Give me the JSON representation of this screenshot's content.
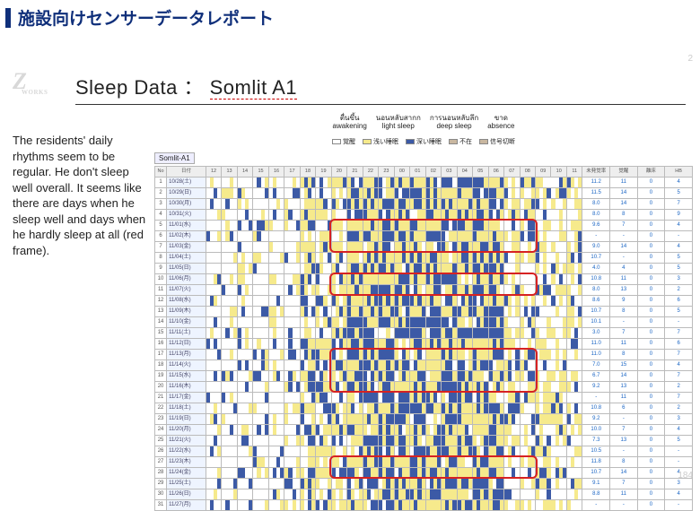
{
  "colors": {
    "accent": "#0f2f7a",
    "title": "#0f2f7a",
    "light_sleep": "#f6ea8c",
    "deep_sleep": "#3c5aa6",
    "awake": "#ffffff",
    "absence": "#c9b7a0",
    "border": "#bbbbbb",
    "redframe": "#d62222",
    "date_bg": "#eef4ff",
    "stat_text": "#1a65c4"
  },
  "header": {
    "title": "施設向けセンサーデータレポート"
  },
  "page_number_top": "2",
  "page_number_bottom": "184",
  "logo": {
    "main": "Z",
    "sub": "WORKS"
  },
  "chart_title": {
    "prefix": "Sleep Data ： ",
    "subject": "Somlit A1"
  },
  "sidebar_text": "The residents' daily rhythms seem to be regular. He don't sleep well overall. It seems like there are days when he sleep well and days when he hardly sleep at all (red frame).",
  "legend_top": [
    {
      "thai": "ตื่นขึ้น",
      "en": "awakening"
    },
    {
      "thai": "นอนหลับสากก",
      "en": "light sleep"
    },
    {
      "thai": "การนอนหลับลึก",
      "en": "deep sleep"
    },
    {
      "thai": "ขาด",
      "en": "absence"
    }
  ],
  "legend_swatch": [
    {
      "label": "覚醒",
      "color_key": "awake"
    },
    {
      "label": "浅い睡眠",
      "color_key": "light_sleep"
    },
    {
      "label": "深い睡眠",
      "color_key": "deep_sleep"
    },
    {
      "label": "不在",
      "color_key": "absence"
    },
    {
      "label": "信号切断",
      "color_key": "absence"
    }
  ],
  "subject_label": "Somlit-A1",
  "hours": [
    "12",
    "13",
    "14",
    "15",
    "16",
    "17",
    "18",
    "19",
    "20",
    "21",
    "22",
    "23",
    "00",
    "01",
    "02",
    "03",
    "04",
    "05",
    "06",
    "07",
    "08",
    "09",
    "10",
    "11"
  ],
  "stat_headers": [
    "未発覚率",
    "覚醒",
    "離床",
    "HB"
  ],
  "rows": [
    {
      "n": 1,
      "date": "10/28(土)",
      "sleep": "11.2",
      "wake": "11",
      "away": "0",
      "hb": "4"
    },
    {
      "n": 2,
      "date": "10/29(日)",
      "sleep": "11.5",
      "wake": "14",
      "away": "0",
      "hb": "5"
    },
    {
      "n": 3,
      "date": "10/30(月)",
      "sleep": "8.0",
      "wake": "14",
      "away": "0",
      "hb": "7"
    },
    {
      "n": 4,
      "date": "10/31(火)",
      "sleep": "8.0",
      "wake": "8",
      "away": "0",
      "hb": "9"
    },
    {
      "n": 5,
      "date": "11/01(水)",
      "sleep": "9.6",
      "wake": "7",
      "away": "0",
      "hb": "4"
    },
    {
      "n": 6,
      "date": "11/02(木)",
      "sleep": "-",
      "wake": "-",
      "away": "0",
      "hb": "-"
    },
    {
      "n": 7,
      "date": "11/03(金)",
      "sleep": "9.0",
      "wake": "14",
      "away": "0",
      "hb": "4"
    },
    {
      "n": 8,
      "date": "11/04(土)",
      "sleep": "10.7",
      "wake": "-",
      "away": "0",
      "hb": "5"
    },
    {
      "n": 9,
      "date": "11/05(日)",
      "sleep": "4.0",
      "wake": "4",
      "away": "0",
      "hb": "5"
    },
    {
      "n": 10,
      "date": "11/06(月)",
      "sleep": "10.8",
      "wake": "11",
      "away": "0",
      "hb": "3"
    },
    {
      "n": 11,
      "date": "11/07(火)",
      "sleep": "8.0",
      "wake": "13",
      "away": "0",
      "hb": "2"
    },
    {
      "n": 12,
      "date": "11/08(水)",
      "sleep": "8.6",
      "wake": "9",
      "away": "0",
      "hb": "6"
    },
    {
      "n": 13,
      "date": "11/09(木)",
      "sleep": "10.7",
      "wake": "8",
      "away": "0",
      "hb": "5"
    },
    {
      "n": 14,
      "date": "11/10(金)",
      "sleep": "10.1",
      "wake": "-",
      "away": "0",
      "hb": "-"
    },
    {
      "n": 15,
      "date": "11/11(土)",
      "sleep": "3.0",
      "wake": "7",
      "away": "0",
      "hb": "7"
    },
    {
      "n": 16,
      "date": "11/12(日)",
      "sleep": "11.0",
      "wake": "11",
      "away": "0",
      "hb": "6"
    },
    {
      "n": 17,
      "date": "11/13(月)",
      "sleep": "11.0",
      "wake": "8",
      "away": "0",
      "hb": "7"
    },
    {
      "n": 18,
      "date": "11/14(火)",
      "sleep": "7.0",
      "wake": "15",
      "away": "0",
      "hb": "4"
    },
    {
      "n": 19,
      "date": "11/15(水)",
      "sleep": "6.7",
      "wake": "14",
      "away": "0",
      "hb": "7"
    },
    {
      "n": 20,
      "date": "11/16(木)",
      "sleep": "9.2",
      "wake": "13",
      "away": "0",
      "hb": "2"
    },
    {
      "n": 21,
      "date": "11/17(金)",
      "sleep": "-",
      "wake": "11",
      "away": "0",
      "hb": "7"
    },
    {
      "n": 22,
      "date": "11/18(土)",
      "sleep": "10.8",
      "wake": "6",
      "away": "0",
      "hb": "2"
    },
    {
      "n": 23,
      "date": "11/19(日)",
      "sleep": "9.2",
      "wake": "-",
      "away": "0",
      "hb": "3"
    },
    {
      "n": 24,
      "date": "11/20(月)",
      "sleep": "10.0",
      "wake": "7",
      "away": "0",
      "hb": "4"
    },
    {
      "n": 25,
      "date": "11/21(火)",
      "sleep": "7.3",
      "wake": "13",
      "away": "0",
      "hb": "5"
    },
    {
      "n": 26,
      "date": "11/22(水)",
      "sleep": "10.5",
      "wake": "-",
      "away": "0",
      "hb": "-"
    },
    {
      "n": 27,
      "date": "11/23(木)",
      "sleep": "11.8",
      "wake": "8",
      "away": "0",
      "hb": "-"
    },
    {
      "n": 28,
      "date": "11/24(金)",
      "sleep": "10.7",
      "wake": "14",
      "away": "0",
      "hb": "4"
    },
    {
      "n": 29,
      "date": "11/25(土)",
      "sleep": "9.1",
      "wake": "7",
      "away": "0",
      "hb": "3"
    },
    {
      "n": 30,
      "date": "11/26(日)",
      "sleep": "8.8",
      "wake": "11",
      "away": "0",
      "hb": "4"
    },
    {
      "n": 31,
      "date": "11/27(月)",
      "sleep": "-",
      "wake": "-",
      "away": "0",
      "hb": "-"
    }
  ],
  "redframes": [
    {
      "top_row": 5,
      "rows": 3
    },
    {
      "top_row": 10,
      "rows": 2
    },
    {
      "top_row": 17,
      "rows": 4
    },
    {
      "top_row": 27,
      "rows": 2
    }
  ],
  "sleep_pattern": {
    "comment": "Per-row hour-by-hour states are approximated from visual reading. states: a=awake(white), l=light(yellow), d=deep(blue), x=absence(tan). Each hour has 4 sub-slots.",
    "day_block": [
      "a",
      "a",
      "a",
      "a"
    ],
    "daytime_hours_end": 8
  }
}
